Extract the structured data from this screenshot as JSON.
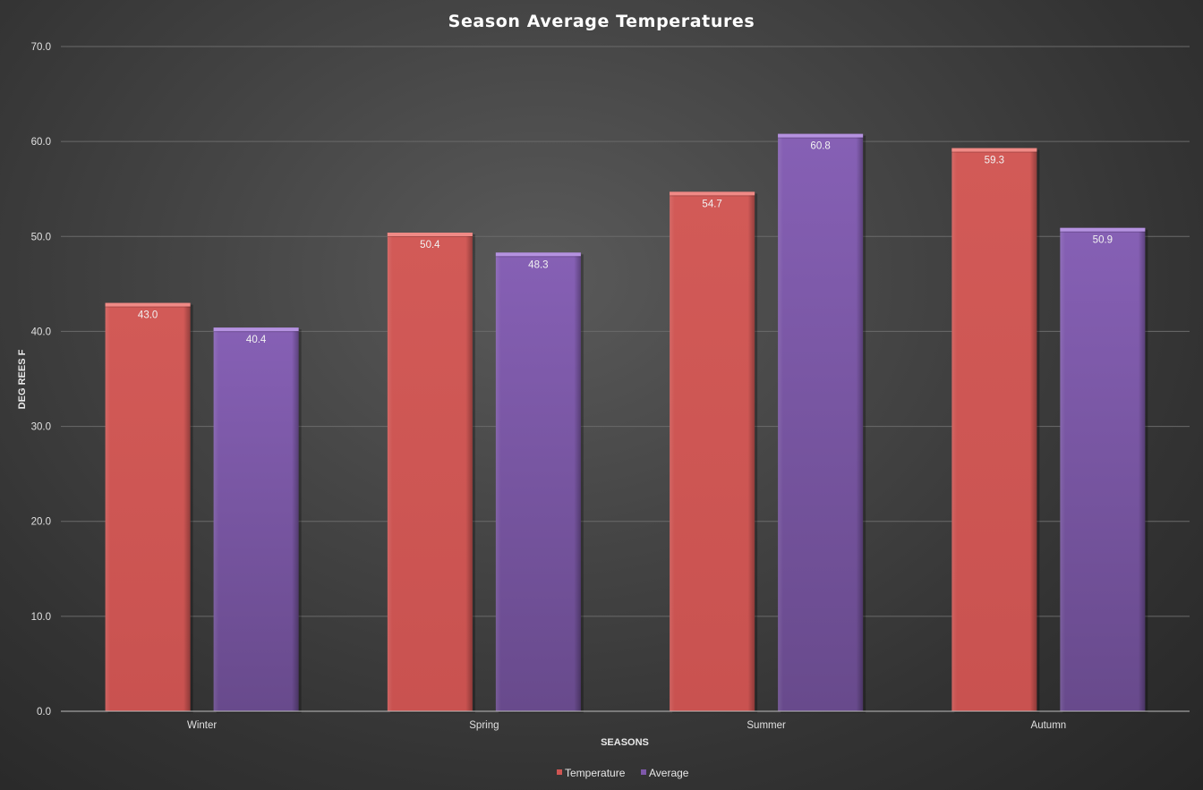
{
  "chart_data": {
    "type": "bar",
    "title": "Season Average Temperatures",
    "xlabel": "SEASONS",
    "ylabel": "DEG REES F",
    "categories": [
      "Winter",
      "Spring",
      "Summer",
      "Autumn"
    ],
    "series": [
      {
        "name": "Temperature",
        "values": [
          43.0,
          50.4,
          54.7,
          59.3
        ],
        "color": "#cf5552"
      },
      {
        "name": "Average",
        "values": [
          40.4,
          48.3,
          60.8,
          50.9
        ],
        "color": "#7e58aa"
      }
    ],
    "ylim": [
      0,
      70
    ],
    "yticks": [
      "0.0",
      "10.0",
      "20.0",
      "30.0",
      "40.0",
      "50.0",
      "60.0",
      "70.0"
    ],
    "data_labels": [
      [
        "43.0",
        "50.4",
        "54.7",
        "59.3"
      ],
      [
        "40.4",
        "48.3",
        "60.8",
        "50.9"
      ]
    ],
    "grid": true,
    "legend_position": "bottom"
  }
}
